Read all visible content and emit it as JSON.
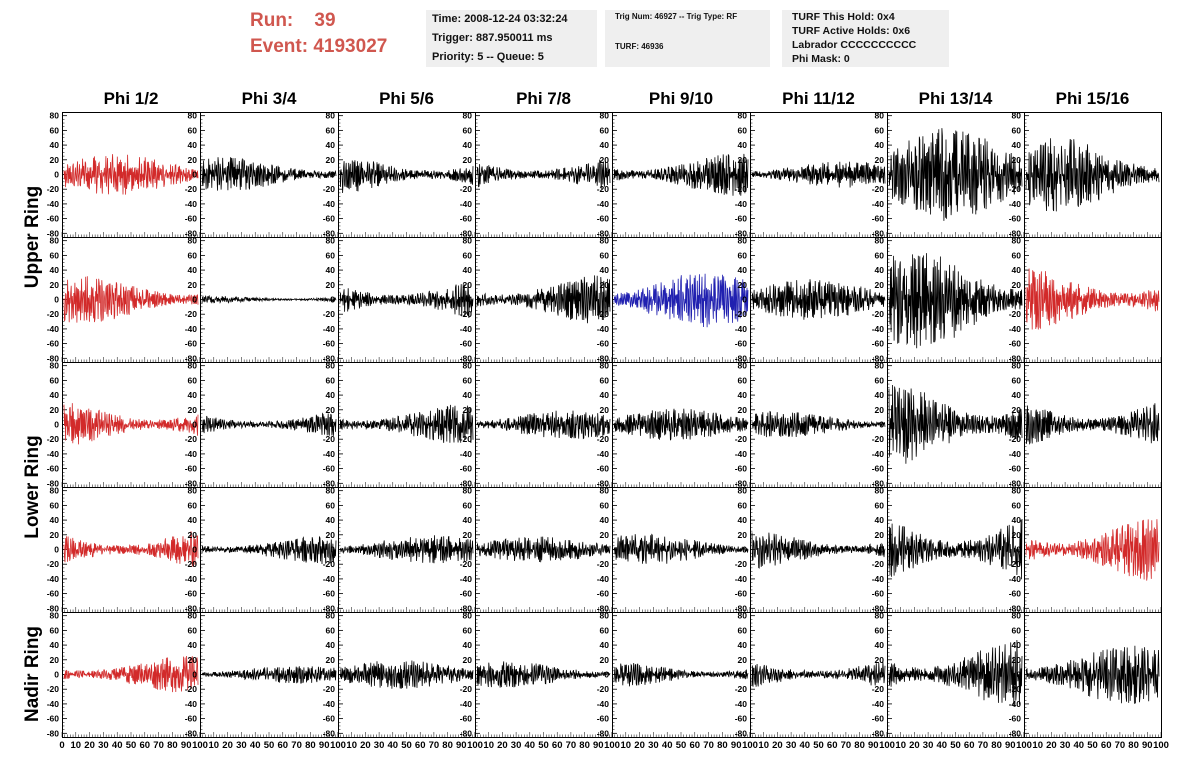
{
  "header": {
    "run_label": "Run:",
    "run_value": "39",
    "event_label": "Event:",
    "event_value": "4193027",
    "time": "Time: 2008-12-24 03:32:24",
    "trigger": "Trigger: 887.950011 ms",
    "priority": "Priority: 5 -- Queue: 5",
    "trig_num": "Trig Num: 46927 -- Trig Type: RF",
    "turf": "TURF: 46936",
    "turf_hold": "TURF This Hold: 0x4",
    "turf_active": "TURF Active Holds: 0x6",
    "labrador": "Labrador CCCCCCCCCC",
    "phi_mask": "Phi Mask: 0"
  },
  "colors": {
    "accent_text": "#d0574f",
    "trace_default": "#000000",
    "trace_red": "#d22a2a",
    "trace_blue": "#2020b0",
    "info_bg": "#efefef"
  },
  "chart_data": {
    "type": "line",
    "column_labels": [
      "Phi 1/2",
      "Phi 3/4",
      "Phi 5/6",
      "Phi 7/8",
      "Phi 9/10",
      "Phi 11/12",
      "Phi 13/14",
      "Phi 15/16"
    ],
    "ring_labels": [
      "Upper Ring",
      "Lower Ring",
      "Nadir Ring"
    ],
    "ylim": [
      -85,
      85
    ],
    "xlim": [
      0,
      100
    ],
    "y_ticks": [
      "80",
      "60",
      "40",
      "20",
      "0",
      "-20",
      "-40",
      "-60",
      "-80"
    ],
    "x_ticks_first": [
      "0",
      "10",
      "20",
      "30",
      "40",
      "50",
      "60",
      "70",
      "80",
      "90",
      "100"
    ],
    "x_ticks_other": [
      "10",
      "20",
      "30",
      "40",
      "50",
      "60",
      "70",
      "80",
      "90",
      "100"
    ],
    "panel_rows": 5,
    "panel_cols": 8,
    "amplitudes": [
      [
        14,
        12,
        14,
        13,
        15,
        9,
        32,
        26
      ],
      [
        16,
        3,
        15,
        17,
        19,
        14,
        34,
        22
      ],
      [
        16,
        10,
        14,
        10,
        11,
        9,
        30,
        20
      ],
      [
        15,
        10,
        10,
        9,
        11,
        13,
        27,
        22
      ],
      [
        13,
        6,
        10,
        9,
        9,
        12,
        24,
        20
      ]
    ],
    "trace_colors": [
      [
        "red",
        "black",
        "black",
        "black",
        "black",
        "black",
        "black",
        "black"
      ],
      [
        "red",
        "black",
        "black",
        "black",
        "blue",
        "black",
        "black",
        "red"
      ],
      [
        "red",
        "black",
        "black",
        "black",
        "black",
        "black",
        "black",
        "black"
      ],
      [
        "red",
        "black",
        "black",
        "black",
        "black",
        "black",
        "black",
        "red"
      ],
      [
        "red",
        "black",
        "black",
        "black",
        "black",
        "black",
        "black",
        "black"
      ]
    ],
    "grid": false
  }
}
